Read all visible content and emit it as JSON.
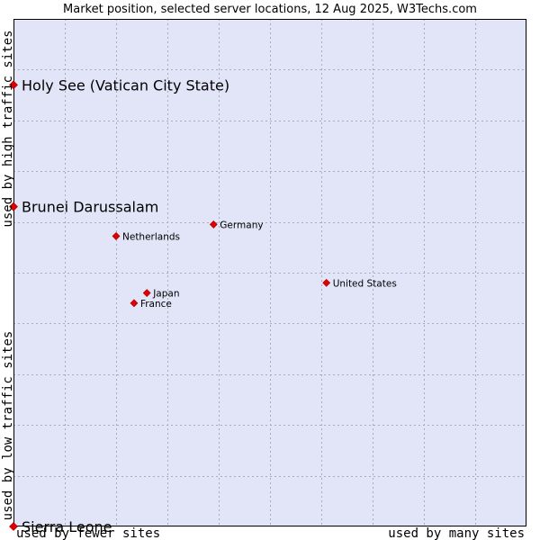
{
  "chart_data": {
    "type": "scatter",
    "title": "Market position, selected server locations, 12 Aug 2025, W3Techs.com",
    "xlabel_left": "used by fewer sites",
    "xlabel_right": "used by many sites",
    "ylabel_bottom": "used by low traffic sites",
    "ylabel_top": "used by high traffic sites",
    "xlim": [
      0,
      10
    ],
    "ylim": [
      0,
      10
    ],
    "grid": true,
    "points": [
      {
        "name": "Holy See (Vatican City State)",
        "x": 0.0,
        "y": 8.7,
        "emphasis": "large"
      },
      {
        "name": "Brunei Darussalam",
        "x": 0.0,
        "y": 6.3,
        "emphasis": "large"
      },
      {
        "name": "Germany",
        "x": 3.9,
        "y": 5.95,
        "emphasis": "small"
      },
      {
        "name": "Netherlands",
        "x": 2.0,
        "y": 5.72,
        "emphasis": "small"
      },
      {
        "name": "United States",
        "x": 6.1,
        "y": 4.8,
        "emphasis": "small"
      },
      {
        "name": "Japan",
        "x": 2.6,
        "y": 4.6,
        "emphasis": "small"
      },
      {
        "name": "France",
        "x": 2.35,
        "y": 4.4,
        "emphasis": "small"
      },
      {
        "name": "Sierra Leone",
        "x": 0.0,
        "y": 0.0,
        "emphasis": "large"
      }
    ],
    "colors": {
      "plot_bg": "#e2e4f8",
      "grid": "#a9a9b8",
      "point": "#e00000",
      "border": "#000000"
    }
  }
}
